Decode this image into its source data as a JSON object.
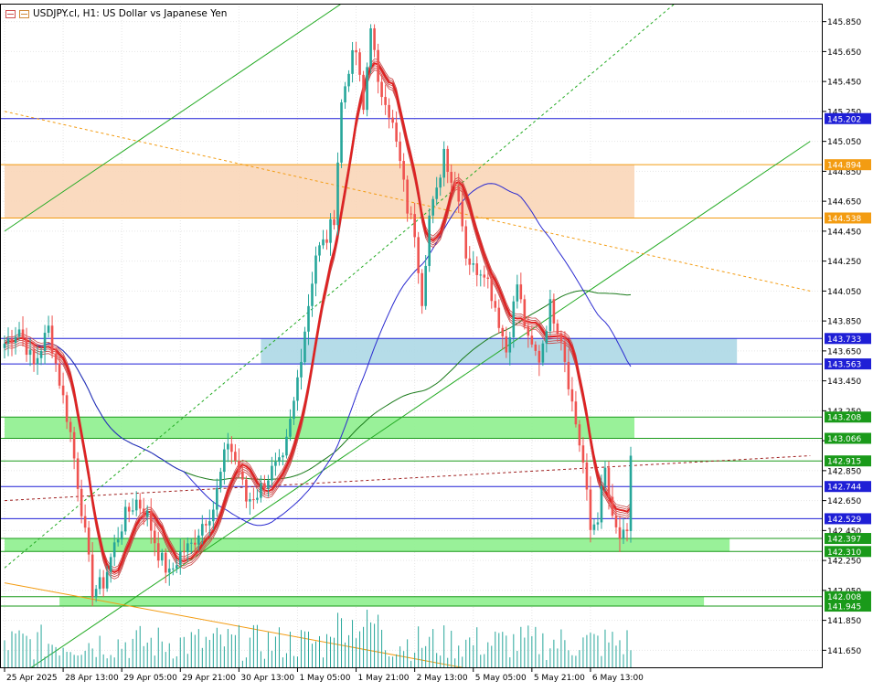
{
  "header": {
    "title": "USDJPY.cl, H1:  US Dollar vs Japanese Yen"
  },
  "colors": {
    "background": "#ffffff",
    "grid": "#e6e6e6",
    "bull": "#26a69a",
    "bear": "#ef5350",
    "level_blue": "#1f1fd6",
    "level_orange": "#f39c12",
    "zone_orange": "#fad6b8",
    "zone_green": "#8ef08e",
    "zone_blue": "#add8e6",
    "ma_fast": "#e02020",
    "ma_mid": "#2a2ad0",
    "ma_slow": "#1a7a1a",
    "trend_green": "#22aa22",
    "trend_orange": "#f39c12",
    "volume": "#26a69a"
  },
  "chart_data": {
    "type": "candlestick",
    "symbol": "USDJPY.cl",
    "timeframe": "H1",
    "ylim": [
      141.53,
      145.97
    ],
    "y_ticks": [
      145.85,
      145.65,
      145.45,
      145.25,
      145.05,
      144.85,
      144.65,
      144.45,
      144.25,
      144.05,
      143.85,
      143.65,
      143.45,
      143.25,
      143.05,
      142.85,
      142.65,
      142.45,
      142.25,
      142.05,
      141.85,
      141.65
    ],
    "y_tick_labels": [
      "145.850",
      "145.650",
      "145.450",
      "145.250",
      "145.050",
      "144.850",
      "144.650",
      "144.450",
      "144.250",
      "144.050",
      "143.850",
      "143.650",
      "143.450",
      "143.250",
      "143.050",
      "142.850",
      "142.650",
      "142.450",
      "142.250",
      "142.050",
      "141.850",
      "141.650"
    ],
    "x_ticks": [
      {
        "label": "25 Apr 2025",
        "bar": 0
      },
      {
        "label": "28 Apr 13:00",
        "bar": 16
      },
      {
        "label": "29 Apr 05:00",
        "bar": 32
      },
      {
        "label": "29 Apr 21:00",
        "bar": 48
      },
      {
        "label": "30 Apr 13:00",
        "bar": 64
      },
      {
        "label": "1 May 05:00",
        "bar": 80
      },
      {
        "label": "1 May 21:00",
        "bar": 96
      },
      {
        "label": "2 May 13:00",
        "bar": 112
      },
      {
        "label": "5 May 05:00",
        "bar": 128
      },
      {
        "label": "5 May 21:00",
        "bar": 144
      },
      {
        "label": "6 May 13:00",
        "bar": 160
      }
    ],
    "bar_count": 172,
    "keypoints": [
      {
        "bar": 0,
        "price": 143.7
      },
      {
        "bar": 4,
        "price": 143.8
      },
      {
        "bar": 8,
        "price": 143.55
      },
      {
        "bar": 12,
        "price": 143.8
      },
      {
        "bar": 15,
        "price": 143.45
      },
      {
        "bar": 18,
        "price": 143.1
      },
      {
        "bar": 21,
        "price": 142.6
      },
      {
        "bar": 24,
        "price": 142.05
      },
      {
        "bar": 27,
        "price": 142.1
      },
      {
        "bar": 30,
        "price": 142.35
      },
      {
        "bar": 33,
        "price": 142.55
      },
      {
        "bar": 36,
        "price": 142.65
      },
      {
        "bar": 39,
        "price": 142.55
      },
      {
        "bar": 42,
        "price": 142.3
      },
      {
        "bar": 45,
        "price": 142.15
      },
      {
        "bar": 48,
        "price": 142.3
      },
      {
        "bar": 51,
        "price": 142.35
      },
      {
        "bar": 54,
        "price": 142.5
      },
      {
        "bar": 57,
        "price": 142.6
      },
      {
        "bar": 61,
        "price": 143.05
      },
      {
        "bar": 64,
        "price": 142.85
      },
      {
        "bar": 66,
        "price": 142.65
      },
      {
        "bar": 69,
        "price": 142.7
      },
      {
        "bar": 73,
        "price": 142.85
      },
      {
        "bar": 76,
        "price": 142.9
      },
      {
        "bar": 79,
        "price": 143.3
      },
      {
        "bar": 82,
        "price": 143.8
      },
      {
        "bar": 85,
        "price": 144.3
      },
      {
        "bar": 88,
        "price": 144.4
      },
      {
        "bar": 90,
        "price": 144.55
      },
      {
        "bar": 92,
        "price": 145.3
      },
      {
        "bar": 94,
        "price": 145.55
      },
      {
        "bar": 96,
        "price": 145.65
      },
      {
        "bar": 98,
        "price": 145.25
      },
      {
        "bar": 100,
        "price": 145.85
      },
      {
        "bar": 102,
        "price": 145.4
      },
      {
        "bar": 104,
        "price": 145.35
      },
      {
        "bar": 106,
        "price": 145.15
      },
      {
        "bar": 108,
        "price": 144.9
      },
      {
        "bar": 110,
        "price": 144.6
      },
      {
        "bar": 112,
        "price": 144.45
      },
      {
        "bar": 114,
        "price": 144.0
      },
      {
        "bar": 116,
        "price": 144.55
      },
      {
        "bar": 118,
        "price": 144.7
      },
      {
        "bar": 120,
        "price": 145.0
      },
      {
        "bar": 122,
        "price": 144.8
      },
      {
        "bar": 124,
        "price": 144.7
      },
      {
        "bar": 126,
        "price": 144.3
      },
      {
        "bar": 128,
        "price": 144.2
      },
      {
        "bar": 131,
        "price": 144.2
      },
      {
        "bar": 134,
        "price": 143.95
      },
      {
        "bar": 137,
        "price": 143.65
      },
      {
        "bar": 140,
        "price": 144.1
      },
      {
        "bar": 143,
        "price": 143.7
      },
      {
        "bar": 146,
        "price": 143.6
      },
      {
        "bar": 149,
        "price": 143.95
      },
      {
        "bar": 152,
        "price": 143.75
      },
      {
        "bar": 155,
        "price": 143.3
      },
      {
        "bar": 158,
        "price": 142.9
      },
      {
        "bar": 160,
        "price": 142.45
      },
      {
        "bar": 162,
        "price": 142.55
      },
      {
        "bar": 164,
        "price": 142.85
      },
      {
        "bar": 166,
        "price": 142.5
      },
      {
        "bar": 168,
        "price": 142.4
      },
      {
        "bar": 170,
        "price": 142.4
      },
      {
        "bar": 171,
        "price": 142.95
      }
    ],
    "levels": [
      {
        "price": 145.202,
        "label": "145.202",
        "color": "#1f1fd6"
      },
      {
        "price": 144.894,
        "label": "144.894",
        "color": "#f39c12"
      },
      {
        "price": 144.538,
        "label": "144.538",
        "color": "#f39c12"
      },
      {
        "price": 143.733,
        "label": "143.733",
        "color": "#1f1fd6"
      },
      {
        "price": 143.563,
        "label": "143.563",
        "color": "#1f1fd6"
      },
      {
        "price": 143.208,
        "label": "143.208",
        "color": "#1a9a1a"
      },
      {
        "price": 143.066,
        "label": "143.066",
        "color": "#1a9a1a"
      },
      {
        "price": 142.915,
        "label": "142.915",
        "color": "#1a9a1a"
      },
      {
        "price": 142.744,
        "label": "142.744",
        "color": "#1f1fd6"
      },
      {
        "price": 142.529,
        "label": "142.529",
        "color": "#1f1fd6"
      },
      {
        "price": 142.397,
        "label": "142.397",
        "color": "#1a9a1a"
      },
      {
        "price": 142.31,
        "label": "142.310",
        "color": "#1a9a1a"
      },
      {
        "price": 142.008,
        "label": "142.008",
        "color": "#1a9a1a"
      },
      {
        "price": 141.945,
        "label": "141.945",
        "color": "#1a9a1a"
      }
    ],
    "zones": [
      {
        "from": 144.538,
        "to": 144.894,
        "start_bar": 0,
        "end_bar": 172,
        "color": "#fad6b8"
      },
      {
        "from": 143.563,
        "to": 143.733,
        "start_bar": 70,
        "end_bar": 200,
        "color": "#add8e6"
      },
      {
        "from": 143.066,
        "to": 143.208,
        "start_bar": 0,
        "end_bar": 172,
        "color": "#8ef08e"
      },
      {
        "from": 142.31,
        "to": 142.397,
        "start_bar": 0,
        "end_bar": 198,
        "color": "#8ef08e"
      },
      {
        "from": 141.945,
        "to": 142.008,
        "start_bar": 15,
        "end_bar": 191,
        "color": "#8ef08e"
      }
    ],
    "trendlines": [
      {
        "bar1": 0,
        "price1": 144.45,
        "bar2": 92,
        "price2": 145.97,
        "color": "#22aa22",
        "dash": false
      },
      {
        "bar1": 0,
        "price1": 142.2,
        "bar2": 183,
        "price2": 145.97,
        "color": "#22aa22",
        "dash": true
      },
      {
        "bar1": 7,
        "price1": 141.53,
        "bar2": 220,
        "price2": 145.05,
        "color": "#22aa22",
        "dash": false
      },
      {
        "bar1": 0,
        "price1": 145.25,
        "bar2": 220,
        "price2": 144.05,
        "color": "#f39c12",
        "dash": true
      },
      {
        "bar1": 0,
        "price1": 142.1,
        "bar2": 126,
        "price2": 141.53,
        "color": "#f39c12",
        "dash": false
      },
      {
        "bar1": 0,
        "price1": 142.65,
        "bar2": 220,
        "price2": 142.95,
        "color": "#a02020",
        "dash": true
      }
    ]
  }
}
